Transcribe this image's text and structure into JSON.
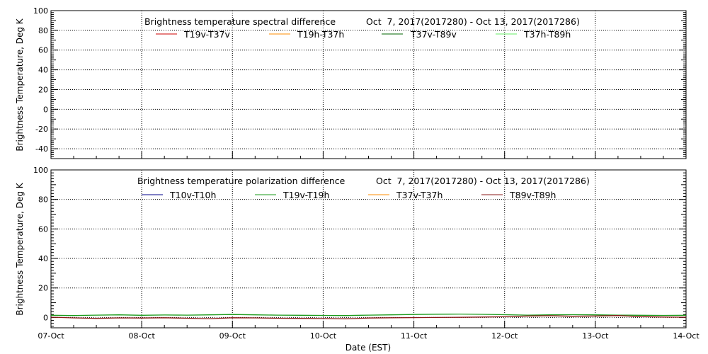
{
  "chart_data": [
    {
      "type": "line",
      "title": "Brightness temperature spectral difference",
      "date_range": "Oct  7, 2017(2017280) - Oct 13, 2017(2017286)",
      "ylabel": "Brightness Temperature, Deg K",
      "xlabel": "",
      "ylim": [
        -50,
        100
      ],
      "yticks": [
        "-40",
        "-20",
        "0",
        "20",
        "40",
        "60",
        "80",
        "100"
      ],
      "ytick_values": [
        -40,
        -20,
        0,
        20,
        40,
        60,
        80,
        100
      ],
      "grid": true,
      "legend_position": "top",
      "series": [
        {
          "name": "T19v-T37v",
          "color": "#cc0000",
          "x": [],
          "values": []
        },
        {
          "name": "T19h-T37h",
          "color": "#ff8c00",
          "x": [],
          "values": []
        },
        {
          "name": "T37v-T89v",
          "color": "#006400",
          "x": [],
          "values": []
        },
        {
          "name": "T37h-T89h",
          "color": "#66ee66",
          "x": [],
          "values": []
        }
      ]
    },
    {
      "type": "line",
      "title": "Brightness temperature polarization difference",
      "date_range": "Oct  7, 2017(2017280) - Oct 13, 2017(2017286)",
      "ylabel": "Brightness Temperature, Deg K",
      "xlabel": "Date (EST)",
      "ylim": [
        -7,
        100
      ],
      "yticks": [
        "0",
        "20",
        "40",
        "60",
        "80",
        "100"
      ],
      "ytick_values": [
        0,
        20,
        40,
        60,
        80,
        100
      ],
      "grid": true,
      "legend_position": "top",
      "series": [
        {
          "name": "T10v-T10h",
          "color": "#00008b",
          "x": [],
          "values": []
        },
        {
          "name": "T19v-T19h",
          "color": "#1a9a1a",
          "x": [
            0,
            0.25,
            0.5,
            0.75,
            1.0,
            1.25,
            1.5,
            1.75,
            2.0,
            2.25,
            2.5,
            2.75,
            3.0,
            3.25,
            3.5,
            3.75,
            4.0,
            4.25,
            4.5,
            4.75,
            5.0,
            5.25,
            5.5,
            5.75,
            6.0,
            6.25,
            6.5,
            6.75,
            7.0
          ],
          "values": [
            1.5,
            1.3,
            1.6,
            1.8,
            1.5,
            1.7,
            1.6,
            1.8,
            2.0,
            1.8,
            1.6,
            1.5,
            1.4,
            1.3,
            1.6,
            1.8,
            2.0,
            2.2,
            2.3,
            2.1,
            1.9,
            1.6,
            1.8,
            1.9,
            1.8,
            1.6,
            1.5,
            1.4,
            1.5
          ]
        },
        {
          "name": "T37v-T37h",
          "color": "#ff8c00",
          "x": [],
          "values": []
        },
        {
          "name": "T89v-T89h",
          "color": "#8b1a1a",
          "x": [
            0,
            0.25,
            0.5,
            0.75,
            1.0,
            1.25,
            1.5,
            1.75,
            2.0,
            2.25,
            2.5,
            2.75,
            3.0,
            3.25,
            3.5,
            3.75,
            4.0,
            4.25,
            4.5,
            4.75,
            5.0,
            5.25,
            5.5,
            5.75,
            6.0,
            6.25,
            6.5,
            6.75,
            7.0
          ],
          "values": [
            0.2,
            -0.3,
            -0.6,
            -0.3,
            -0.4,
            -0.2,
            -0.5,
            -0.8,
            -0.2,
            -0.3,
            -0.5,
            -0.6,
            -0.7,
            -0.9,
            -0.4,
            -0.2,
            -0.1,
            0.0,
            0.1,
            0.3,
            0.5,
            1.0,
            1.2,
            0.8,
            1.0,
            1.3,
            0.6,
            0.3,
            0.2
          ]
        }
      ]
    }
  ],
  "x_axis": {
    "ticks": [
      "07-Oct",
      "08-Oct",
      "09-Oct",
      "10-Oct",
      "11-Oct",
      "12-Oct",
      "13-Oct",
      "14-Oct"
    ],
    "tick_values": [
      0,
      1,
      2,
      3,
      4,
      5,
      6,
      7
    ],
    "range": [
      0,
      7
    ]
  }
}
